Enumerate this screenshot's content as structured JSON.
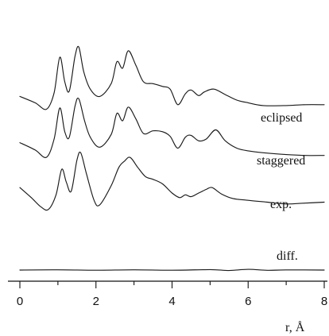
{
  "chart_data": {
    "type": "line",
    "title": "",
    "xlabel": "r, Å",
    "ylabel": "",
    "xlim": [
      0,
      8
    ],
    "x_ticks": [
      0,
      2,
      4,
      6,
      8
    ],
    "x_tick_labels": [
      "0",
      "2",
      "4",
      "6",
      "8"
    ],
    "grid": false,
    "legend": "none",
    "line_color": "#1a1a1a",
    "series": [
      {
        "name": "eclipsed",
        "x": [
          0.0,
          0.4,
          0.7,
          0.9,
          1.05,
          1.18,
          1.3,
          1.45,
          1.55,
          1.68,
          1.85,
          2.1,
          2.4,
          2.55,
          2.7,
          2.85,
          3.05,
          3.25,
          3.5,
          3.75,
          3.95,
          4.15,
          4.35,
          4.5,
          4.7,
          4.85,
          5.1,
          5.4,
          5.7,
          6.0,
          6.4,
          7.0,
          7.5,
          8.0
        ],
        "y": [
          44,
          37,
          30,
          48,
          87,
          60,
          50,
          88,
          98,
          71,
          52,
          44,
          58,
          82,
          75,
          94,
          78,
          60,
          58,
          55,
          52,
          35,
          47,
          51,
          45,
          49,
          52,
          46,
          40,
          37,
          34,
          34,
          35,
          35
        ]
      },
      {
        "name": "staggered",
        "x": [
          0.0,
          0.4,
          0.7,
          0.9,
          1.05,
          1.18,
          1.3,
          1.45,
          1.55,
          1.7,
          1.85,
          2.1,
          2.4,
          2.55,
          2.7,
          2.85,
          3.05,
          3.25,
          3.5,
          3.75,
          3.95,
          4.15,
          4.35,
          4.5,
          4.7,
          4.9,
          5.15,
          5.4,
          5.7,
          6.0,
          6.4,
          7.0,
          7.5,
          8.0
        ],
        "y": [
          36,
          28,
          20,
          40,
          74,
          48,
          42,
          76,
          84,
          60,
          42,
          31,
          45,
          68,
          60,
          75,
          62,
          46,
          49,
          48,
          43,
          30,
          42,
          44,
          38,
          40,
          50,
          38,
          30,
          27,
          25,
          23,
          22,
          22
        ]
      },
      {
        "name": "exp.",
        "x": [
          0.0,
          0.3,
          0.55,
          0.75,
          0.95,
          1.1,
          1.22,
          1.35,
          1.5,
          1.6,
          1.75,
          1.95,
          2.1,
          2.4,
          2.6,
          2.75,
          2.9,
          3.1,
          3.3,
          3.5,
          3.75,
          4.0,
          4.2,
          4.35,
          4.5,
          4.7,
          4.9,
          5.05,
          5.3,
          5.6,
          6.0,
          6.5,
          7.0,
          7.5,
          8.0
        ],
        "y": [
          26,
          15,
          5,
          2,
          18,
          46,
          32,
          22,
          56,
          64,
          41,
          12,
          7,
          28,
          48,
          55,
          59,
          48,
          38,
          35,
          30,
          20,
          15,
          18,
          16,
          20,
          24,
          26,
          19,
          14,
          12,
          10,
          8,
          9,
          10
        ]
      },
      {
        "name": "diff.",
        "x": [
          0.0,
          1.0,
          2.0,
          3.0,
          4.0,
          5.0,
          5.5,
          6.0,
          6.5,
          7.0,
          8.0
        ],
        "y": [
          0,
          0.3,
          -0.2,
          0.3,
          -0.2,
          0.5,
          -0.5,
          0.8,
          -0.3,
          0.2,
          0
        ]
      }
    ]
  }
}
